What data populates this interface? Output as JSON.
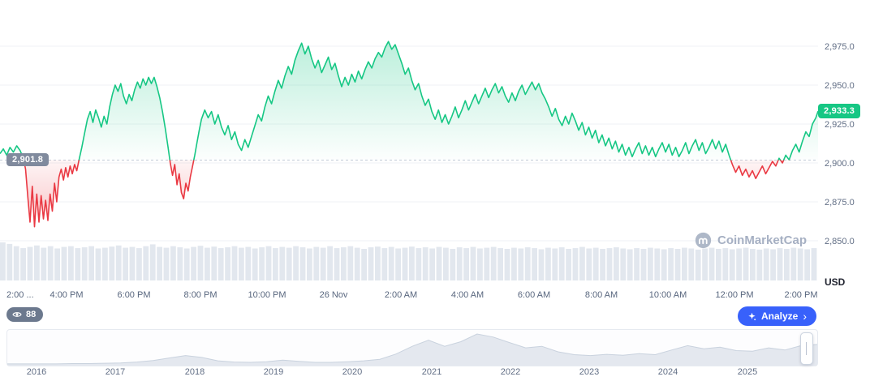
{
  "watermark": {
    "text": "CoinMarketCap"
  },
  "badges": {
    "watchers": "88"
  },
  "buttons": {
    "analyze": "Analyze",
    "analyze_chevron": "›"
  },
  "chart_data": {
    "type": "line",
    "subtype": "baseline-area-with-volume",
    "y_axis": {
      "unit": "USD",
      "ticks": [
        {
          "label": "2,975.0",
          "value": 2975
        },
        {
          "label": "2,950.0",
          "value": 2950
        },
        {
          "label": "2,925.0",
          "value": 2925
        },
        {
          "label": "2,900.0",
          "value": 2900
        },
        {
          "label": "2,875.0",
          "value": 2875
        },
        {
          "label": "2,850.0",
          "value": 2850
        }
      ]
    },
    "baseline": {
      "value": 2901.8,
      "label": "2,901.8"
    },
    "current": {
      "value": 2933.3,
      "label": "2,933.3"
    },
    "x_ticks": [
      {
        "label": "2:00 ...",
        "t": 0
      },
      {
        "label": "4:00 PM",
        "t": 120
      },
      {
        "label": "6:00 PM",
        "t": 240
      },
      {
        "label": "8:00 PM",
        "t": 360
      },
      {
        "label": "10:00 PM",
        "t": 480
      },
      {
        "label": "26 Nov",
        "t": 600
      },
      {
        "label": "2:00 AM",
        "t": 720
      },
      {
        "label": "4:00 AM",
        "t": 840
      },
      {
        "label": "6:00 AM",
        "t": 960
      },
      {
        "label": "8:00 AM",
        "t": 1080
      },
      {
        "label": "10:00 AM",
        "t": 1200
      },
      {
        "label": "12:00 PM",
        "t": 1320
      },
      {
        "label": "2:00 PM",
        "t": 1440
      }
    ],
    "colors": {
      "up": "#16c784",
      "down": "#ea3943",
      "accent": "#3861fb",
      "volume": "#dfe4ec",
      "grid": "#eff2f5"
    },
    "series": {
      "name": "Price (USD)",
      "points": [
        [
          0,
          2906
        ],
        [
          6,
          2909
        ],
        [
          12,
          2905
        ],
        [
          18,
          2910
        ],
        [
          24,
          2907
        ],
        [
          30,
          2911
        ],
        [
          36,
          2908
        ],
        [
          42,
          2903
        ],
        [
          46,
          2896
        ],
        [
          50,
          2878
        ],
        [
          54,
          2862
        ],
        [
          58,
          2885
        ],
        [
          62,
          2859
        ],
        [
          66,
          2880
        ],
        [
          70,
          2862
        ],
        [
          74,
          2879
        ],
        [
          78,
          2864
        ],
        [
          82,
          2876
        ],
        [
          86,
          2863
        ],
        [
          90,
          2880
        ],
        [
          94,
          2869
        ],
        [
          98,
          2887
        ],
        [
          102,
          2875
        ],
        [
          106,
          2891
        ],
        [
          110,
          2896
        ],
        [
          114,
          2889
        ],
        [
          118,
          2897
        ],
        [
          122,
          2891
        ],
        [
          126,
          2898
        ],
        [
          130,
          2893
        ],
        [
          134,
          2899
        ],
        [
          138,
          2895
        ],
        [
          142,
          2902
        ],
        [
          147,
          2910
        ],
        [
          152,
          2919
        ],
        [
          157,
          2928
        ],
        [
          162,
          2933
        ],
        [
          167,
          2926
        ],
        [
          172,
          2934
        ],
        [
          177,
          2929
        ],
        [
          182,
          2923
        ],
        [
          187,
          2930
        ],
        [
          192,
          2925
        ],
        [
          197,
          2936
        ],
        [
          202,
          2944
        ],
        [
          207,
          2950
        ],
        [
          212,
          2946
        ],
        [
          217,
          2951
        ],
        [
          222,
          2943
        ],
        [
          227,
          2938
        ],
        [
          232,
          2944
        ],
        [
          237,
          2940
        ],
        [
          242,
          2947
        ],
        [
          247,
          2952
        ],
        [
          252,
          2948
        ],
        [
          257,
          2954
        ],
        [
          262,
          2950
        ],
        [
          267,
          2955
        ],
        [
          272,
          2951
        ],
        [
          277,
          2955
        ],
        [
          282,
          2949
        ],
        [
          287,
          2942
        ],
        [
          292,
          2933
        ],
        [
          297,
          2922
        ],
        [
          302,
          2910
        ],
        [
          306,
          2900
        ],
        [
          310,
          2892
        ],
        [
          314,
          2899
        ],
        [
          318,
          2886
        ],
        [
          322,
          2893
        ],
        [
          326,
          2881
        ],
        [
          330,
          2877
        ],
        [
          334,
          2887
        ],
        [
          338,
          2882
        ],
        [
          342,
          2891
        ],
        [
          346,
          2898
        ],
        [
          350,
          2905
        ],
        [
          354,
          2913
        ],
        [
          358,
          2921
        ],
        [
          362,
          2928
        ],
        [
          368,
          2934
        ],
        [
          374,
          2929
        ],
        [
          380,
          2933
        ],
        [
          386,
          2925
        ],
        [
          392,
          2931
        ],
        [
          398,
          2923
        ],
        [
          404,
          2918
        ],
        [
          410,
          2924
        ],
        [
          416,
          2915
        ],
        [
          422,
          2920
        ],
        [
          428,
          2912
        ],
        [
          434,
          2908
        ],
        [
          440,
          2915
        ],
        [
          446,
          2910
        ],
        [
          452,
          2917
        ],
        [
          458,
          2924
        ],
        [
          464,
          2931
        ],
        [
          470,
          2927
        ],
        [
          476,
          2936
        ],
        [
          482,
          2943
        ],
        [
          488,
          2938
        ],
        [
          494,
          2946
        ],
        [
          500,
          2953
        ],
        [
          506,
          2948
        ],
        [
          512,
          2956
        ],
        [
          518,
          2962
        ],
        [
          524,
          2957
        ],
        [
          530,
          2966
        ],
        [
          536,
          2972
        ],
        [
          542,
          2977
        ],
        [
          548,
          2970
        ],
        [
          554,
          2975
        ],
        [
          560,
          2967
        ],
        [
          566,
          2961
        ],
        [
          572,
          2966
        ],
        [
          578,
          2958
        ],
        [
          584,
          2963
        ],
        [
          590,
          2968
        ],
        [
          596,
          2960
        ],
        [
          602,
          2964
        ],
        [
          608,
          2956
        ],
        [
          614,
          2949
        ],
        [
          620,
          2955
        ],
        [
          626,
          2950
        ],
        [
          632,
          2957
        ],
        [
          638,
          2952
        ],
        [
          644,
          2959
        ],
        [
          650,
          2954
        ],
        [
          656,
          2960
        ],
        [
          662,
          2965
        ],
        [
          668,
          2961
        ],
        [
          674,
          2967
        ],
        [
          680,
          2971
        ],
        [
          686,
          2968
        ],
        [
          692,
          2974
        ],
        [
          698,
          2978
        ],
        [
          704,
          2973
        ],
        [
          710,
          2976
        ],
        [
          716,
          2970
        ],
        [
          722,
          2964
        ],
        [
          728,
          2957
        ],
        [
          734,
          2961
        ],
        [
          740,
          2953
        ],
        [
          746,
          2947
        ],
        [
          752,
          2951
        ],
        [
          758,
          2943
        ],
        [
          764,
          2937
        ],
        [
          770,
          2941
        ],
        [
          776,
          2933
        ],
        [
          782,
          2928
        ],
        [
          788,
          2934
        ],
        [
          794,
          2926
        ],
        [
          800,
          2931
        ],
        [
          806,
          2925
        ],
        [
          812,
          2930
        ],
        [
          818,
          2936
        ],
        [
          824,
          2929
        ],
        [
          830,
          2934
        ],
        [
          836,
          2940
        ],
        [
          842,
          2934
        ],
        [
          848,
          2939
        ],
        [
          854,
          2944
        ],
        [
          860,
          2938
        ],
        [
          866,
          2943
        ],
        [
          872,
          2948
        ],
        [
          878,
          2942
        ],
        [
          884,
          2947
        ],
        [
          890,
          2951
        ],
        [
          896,
          2945
        ],
        [
          902,
          2949
        ],
        [
          908,
          2943
        ],
        [
          914,
          2939
        ],
        [
          920,
          2945
        ],
        [
          926,
          2940
        ],
        [
          932,
          2946
        ],
        [
          938,
          2950
        ],
        [
          944,
          2944
        ],
        [
          950,
          2948
        ],
        [
          956,
          2952
        ],
        [
          962,
          2947
        ],
        [
          968,
          2951
        ],
        [
          974,
          2945
        ],
        [
          980,
          2941
        ],
        [
          986,
          2936
        ],
        [
          992,
          2930
        ],
        [
          998,
          2935
        ],
        [
          1004,
          2928
        ],
        [
          1010,
          2924
        ],
        [
          1016,
          2930
        ],
        [
          1022,
          2925
        ],
        [
          1028,
          2932
        ],
        [
          1034,
          2927
        ],
        [
          1040,
          2921
        ],
        [
          1046,
          2926
        ],
        [
          1052,
          2918
        ],
        [
          1058,
          2923
        ],
        [
          1064,
          2916
        ],
        [
          1070,
          2921
        ],
        [
          1076,
          2913
        ],
        [
          1082,
          2918
        ],
        [
          1088,
          2911
        ],
        [
          1094,
          2916
        ],
        [
          1100,
          2909
        ],
        [
          1106,
          2914
        ],
        [
          1112,
          2907
        ],
        [
          1118,
          2912
        ],
        [
          1124,
          2905
        ],
        [
          1130,
          2910
        ],
        [
          1136,
          2904
        ],
        [
          1142,
          2909
        ],
        [
          1148,
          2913
        ],
        [
          1154,
          2906
        ],
        [
          1160,
          2911
        ],
        [
          1166,
          2905
        ],
        [
          1172,
          2910
        ],
        [
          1178,
          2904
        ],
        [
          1184,
          2909
        ],
        [
          1190,
          2913
        ],
        [
          1196,
          2907
        ],
        [
          1202,
          2912
        ],
        [
          1208,
          2905
        ],
        [
          1214,
          2910
        ],
        [
          1220,
          2904
        ],
        [
          1226,
          2908
        ],
        [
          1232,
          2913
        ],
        [
          1238,
          2906
        ],
        [
          1244,
          2911
        ],
        [
          1250,
          2915
        ],
        [
          1256,
          2908
        ],
        [
          1262,
          2913
        ],
        [
          1268,
          2906
        ],
        [
          1274,
          2910
        ],
        [
          1280,
          2915
        ],
        [
          1286,
          2909
        ],
        [
          1292,
          2914
        ],
        [
          1298,
          2907
        ],
        [
          1304,
          2912
        ],
        [
          1310,
          2905
        ],
        [
          1316,
          2899
        ],
        [
          1322,
          2894
        ],
        [
          1328,
          2898
        ],
        [
          1334,
          2892
        ],
        [
          1340,
          2896
        ],
        [
          1346,
          2891
        ],
        [
          1352,
          2895
        ],
        [
          1358,
          2890
        ],
        [
          1364,
          2894
        ],
        [
          1370,
          2898
        ],
        [
          1376,
          2893
        ],
        [
          1382,
          2897
        ],
        [
          1388,
          2901
        ],
        [
          1394,
          2898
        ],
        [
          1400,
          2903
        ],
        [
          1406,
          2900
        ],
        [
          1412,
          2905
        ],
        [
          1418,
          2902
        ],
        [
          1424,
          2908
        ],
        [
          1430,
          2912
        ],
        [
          1436,
          2907
        ],
        [
          1442,
          2914
        ],
        [
          1448,
          2920
        ],
        [
          1454,
          2917
        ],
        [
          1460,
          2925
        ],
        [
          1466,
          2929
        ],
        [
          1470,
          2933.3
        ]
      ]
    },
    "volumes": [
      1.0,
      0.96,
      0.9,
      0.85,
      0.88,
      0.92,
      0.86,
      0.9,
      0.84,
      0.88,
      0.9,
      0.85,
      0.87,
      0.9,
      0.84,
      0.86,
      0.89,
      0.92,
      0.86,
      0.88,
      0.85,
      0.9,
      0.95,
      0.88,
      0.86,
      0.9,
      0.87,
      0.84,
      0.88,
      0.91,
      0.86,
      0.89,
      0.85,
      0.87,
      0.9,
      0.86,
      0.88,
      0.84,
      0.87,
      0.9,
      0.85,
      0.88,
      0.86,
      0.9,
      0.87,
      0.84,
      0.88,
      0.86,
      0.9,
      0.85,
      0.87,
      0.9,
      0.86,
      0.83,
      0.87,
      0.89,
      0.85,
      0.88,
      0.84,
      0.86,
      0.89,
      0.85,
      0.87,
      0.84,
      0.88,
      0.86,
      0.83,
      0.87,
      0.85,
      0.88,
      0.84,
      0.86,
      0.88,
      0.85,
      0.83,
      0.86,
      0.84,
      0.87,
      0.85,
      0.82,
      0.86,
      0.84,
      0.87,
      0.83,
      0.85,
      0.88,
      0.84,
      0.86,
      0.83,
      0.85,
      0.87,
      0.84,
      0.82,
      0.85,
      0.83,
      0.86,
      0.84,
      0.82,
      0.85,
      0.83,
      0.86,
      0.84,
      0.81,
      0.84,
      0.86,
      0.83,
      0.85,
      0.82,
      0.84,
      0.86,
      0.83,
      0.81,
      0.84,
      0.82,
      0.85,
      0.83,
      0.86,
      0.84,
      0.82,
      0.85
    ],
    "navigator": {
      "years": [
        "2016",
        "2017",
        "2018",
        "2019",
        "2020",
        "2021",
        "2022",
        "2023",
        "2024",
        "2025"
      ],
      "values": [
        0.03,
        0.03,
        0.03,
        0.03,
        0.04,
        0.04,
        0.05,
        0.06,
        0.09,
        0.14,
        0.22,
        0.3,
        0.24,
        0.13,
        0.09,
        0.08,
        0.1,
        0.15,
        0.11,
        0.08,
        0.08,
        0.1,
        0.13,
        0.18,
        0.35,
        0.6,
        0.8,
        0.6,
        0.75,
        1.0,
        0.9,
        0.72,
        0.55,
        0.6,
        0.42,
        0.33,
        0.3,
        0.34,
        0.31,
        0.36,
        0.33,
        0.48,
        0.62,
        0.52,
        0.57,
        0.46,
        0.44,
        0.55,
        0.48,
        0.62,
        0.66
      ]
    }
  }
}
